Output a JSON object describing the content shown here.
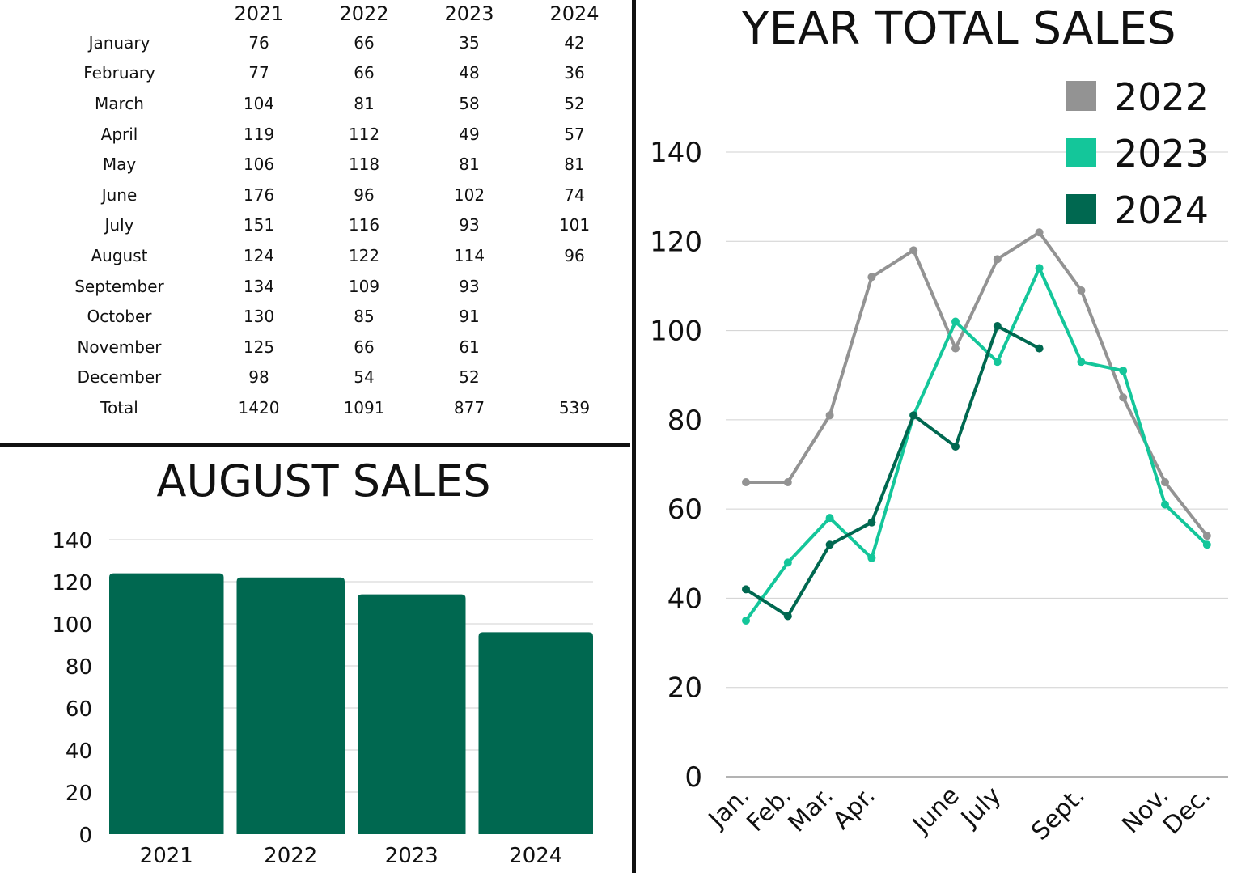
{
  "table": {
    "years": [
      "2021",
      "2022",
      "2023",
      "2024"
    ],
    "rows": [
      {
        "month": "January",
        "values": [
          "76",
          "66",
          "35",
          "42"
        ]
      },
      {
        "month": "February",
        "values": [
          "77",
          "66",
          "48",
          "36"
        ]
      },
      {
        "month": "March",
        "values": [
          "104",
          "81",
          "58",
          "52"
        ]
      },
      {
        "month": "April",
        "values": [
          "119",
          "112",
          "49",
          "57"
        ]
      },
      {
        "month": "May",
        "values": [
          "106",
          "118",
          "81",
          "81"
        ]
      },
      {
        "month": "June",
        "values": [
          "176",
          "96",
          "102",
          "74"
        ]
      },
      {
        "month": "July",
        "values": [
          "151",
          "116",
          "93",
          "101"
        ]
      },
      {
        "month": "August",
        "values": [
          "124",
          "122",
          "114",
          "96"
        ]
      },
      {
        "month": "September",
        "values": [
          "134",
          "109",
          "93",
          ""
        ]
      },
      {
        "month": "October",
        "values": [
          "130",
          "85",
          "91",
          ""
        ]
      },
      {
        "month": "November",
        "values": [
          "125",
          "66",
          "61",
          ""
        ]
      },
      {
        "month": "December",
        "values": [
          "98",
          "54",
          "52",
          ""
        ]
      }
    ],
    "total": {
      "label": "Total",
      "values": [
        "1420",
        "1091",
        "877",
        "539"
      ]
    }
  },
  "colors": {
    "bar": "#006850",
    "series_2022": "#939393",
    "series_2023": "#14c69a",
    "series_2024": "#006850",
    "grid": "#d0d0d0"
  },
  "chart_data": [
    {
      "type": "bar",
      "title": "AUGUST SALES",
      "categories": [
        "2021",
        "2022",
        "2023",
        "2024"
      ],
      "values": [
        124,
        122,
        114,
        96
      ],
      "ylim": [
        0,
        140
      ],
      "yticks": [
        0,
        20,
        40,
        60,
        80,
        100,
        120,
        140
      ],
      "grid": true
    },
    {
      "type": "line",
      "title": "YEAR TOTAL SALES",
      "x_tick_labels": [
        "Jan.",
        "Feb.",
        "Mar.",
        "Apr.",
        "",
        "June",
        "July",
        "",
        "Sept.",
        "",
        "Nov.",
        "Dec."
      ],
      "series": [
        {
          "name": "2022",
          "values": [
            66,
            66,
            81,
            112,
            118,
            96,
            116,
            122,
            109,
            85,
            66,
            54
          ]
        },
        {
          "name": "2023",
          "values": [
            35,
            48,
            58,
            49,
            81,
            102,
            93,
            114,
            93,
            91,
            61,
            52
          ]
        },
        {
          "name": "2024",
          "values": [
            42,
            36,
            52,
            57,
            81,
            74,
            101,
            96,
            null,
            null,
            null,
            null
          ]
        }
      ],
      "ylim": [
        0,
        140
      ],
      "yticks": [
        0,
        20,
        40,
        60,
        80,
        100,
        120,
        140
      ],
      "grid": true,
      "legend_position": "top-right"
    }
  ]
}
